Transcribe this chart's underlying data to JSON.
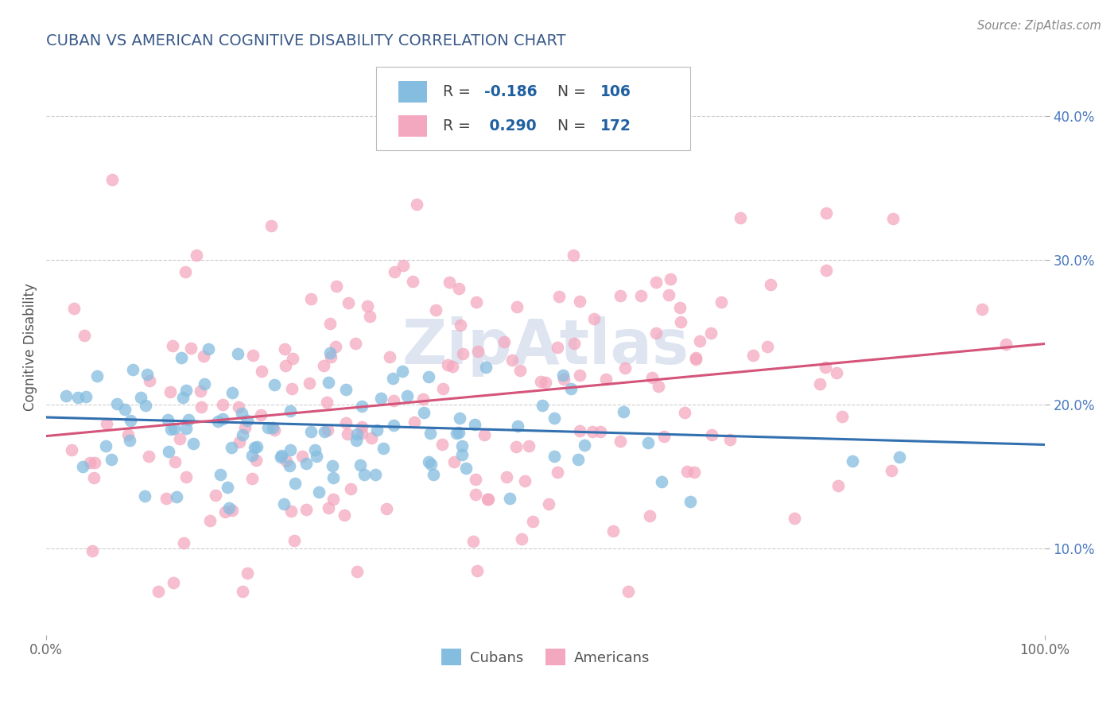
{
  "title": "CUBAN VS AMERICAN COGNITIVE DISABILITY CORRELATION CHART",
  "source": "Source: ZipAtlas.com",
  "ylabel": "Cognitive Disability",
  "yticks_right": [
    0.1,
    0.2,
    0.3,
    0.4
  ],
  "ytick_labels_right": [
    "10.0%",
    "20.0%",
    "30.0%",
    "40.0%"
  ],
  "xlim": [
    0.0,
    1.0
  ],
  "ylim": [
    0.04,
    0.44
  ],
  "cuban_R": -0.186,
  "cuban_N": 106,
  "american_R": 0.29,
  "american_N": 172,
  "blue_color": "#85bde0",
  "pink_color": "#f4a8bf",
  "blue_line_color": "#3370b0",
  "pink_line_color": "#d4547a",
  "title_color": "#3a5a8a",
  "legend_R_color": "#2060a0",
  "legend_N_color": "#2060a0",
  "watermark": "ZipAtlas",
  "watermark_color": "#c8d4e8",
  "background_color": "#ffffff",
  "grid_color": "#cccccc",
  "seed": 42,
  "cuban_trend_x0": 0.0,
  "cuban_trend_y0": 0.191,
  "cuban_trend_x1": 1.0,
  "cuban_trend_y1": 0.172,
  "american_trend_x0": 0.0,
  "american_trend_y0": 0.178,
  "american_trend_x1": 1.0,
  "american_trend_y1": 0.242
}
